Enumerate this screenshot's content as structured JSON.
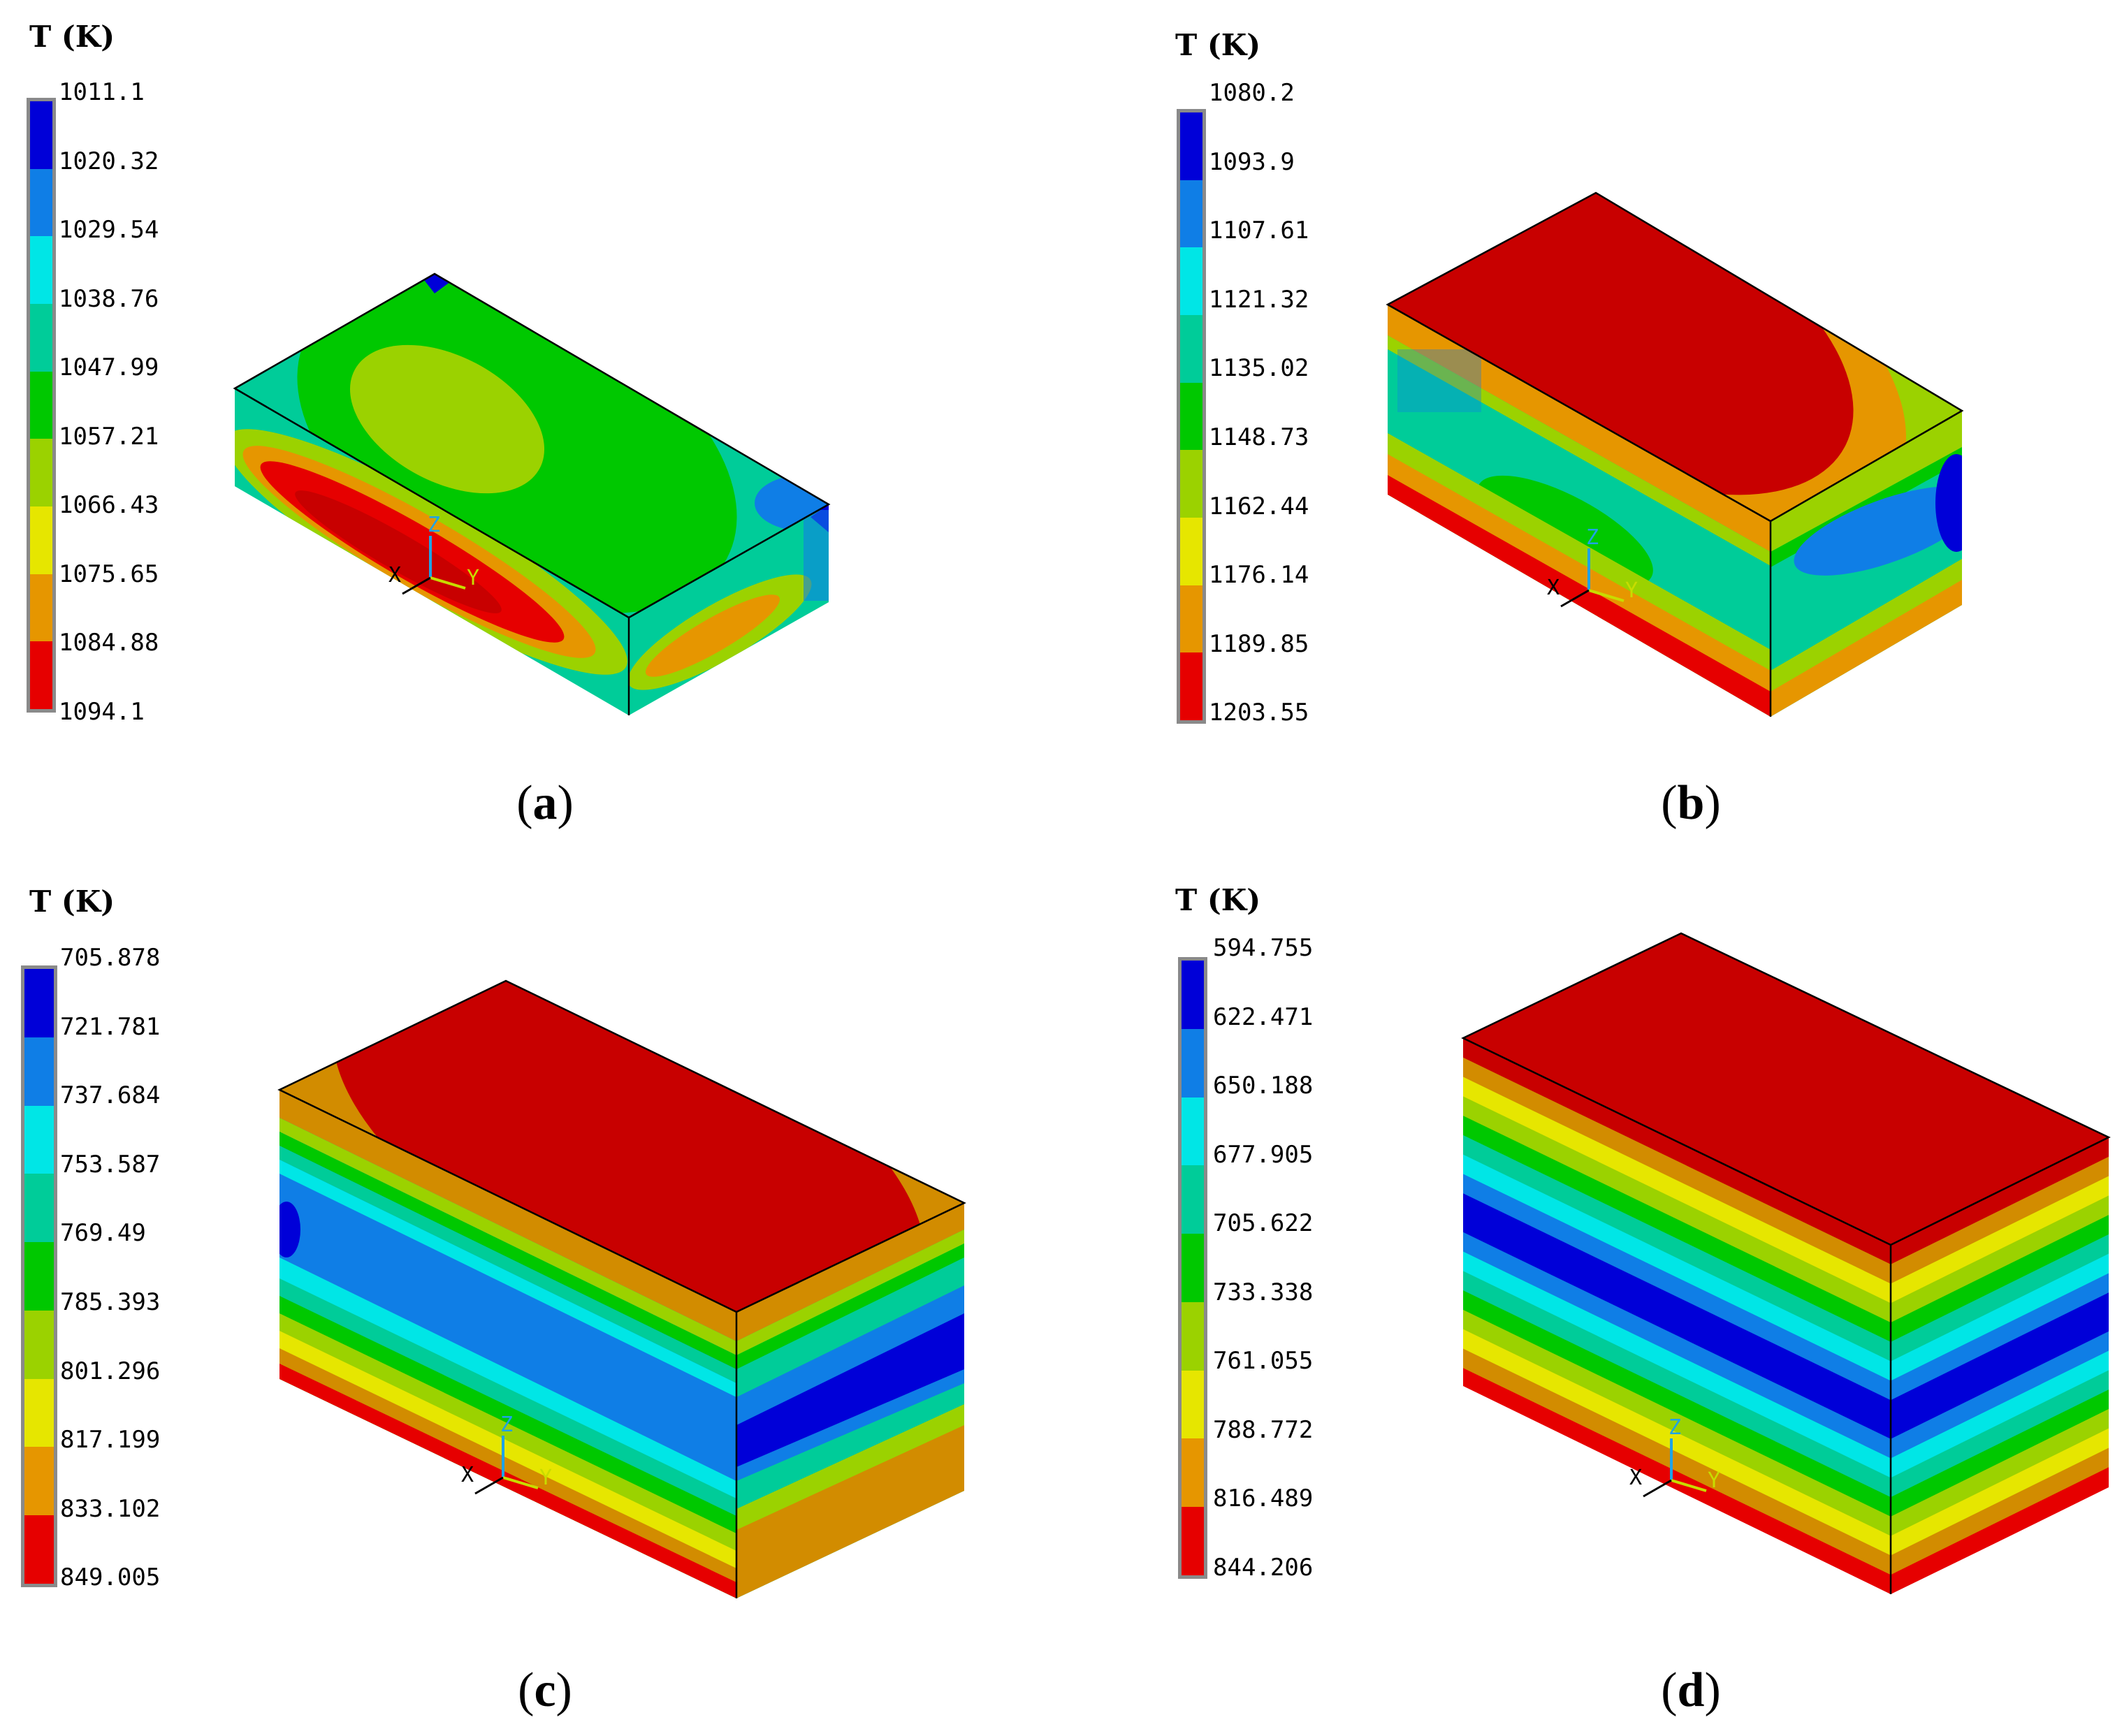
{
  "unit_label": "T (K)",
  "band_colors": [
    "#0000d8",
    "#0f7ee6",
    "#00e6e6",
    "#00cc99",
    "#00c800",
    "#9bd200",
    "#e6e600",
    "#e69600",
    "#e60000"
  ],
  "panels": [
    {
      "id": "a",
      "caption": "a",
      "ticks": [
        "1011.1",
        "1020.32",
        "1029.54",
        "1038.76",
        "1047.99",
        "1057.21",
        "1066.43",
        "1075.65",
        "1084.88",
        "1094.1"
      ]
    },
    {
      "id": "b",
      "caption": "b",
      "ticks": [
        "1080.2",
        "1093.9",
        "1107.61",
        "1121.32",
        "1135.02",
        "1148.73",
        "1162.44",
        "1176.14",
        "1189.85",
        "1203.55"
      ]
    },
    {
      "id": "c",
      "caption": "c",
      "ticks": [
        "705.878",
        "721.781",
        "737.684",
        "753.587",
        "769.49",
        "785.393",
        "801.296",
        "817.199",
        "833.102",
        "849.005"
      ]
    },
    {
      "id": "d",
      "caption": "d",
      "ticks": [
        "594.755",
        "622.471",
        "650.188",
        "677.905",
        "705.622",
        "733.338",
        "761.055",
        "788.772",
        "816.489",
        "844.206"
      ]
    }
  ],
  "triad": {
    "x": "X",
    "y": "Y",
    "z": "Z"
  }
}
